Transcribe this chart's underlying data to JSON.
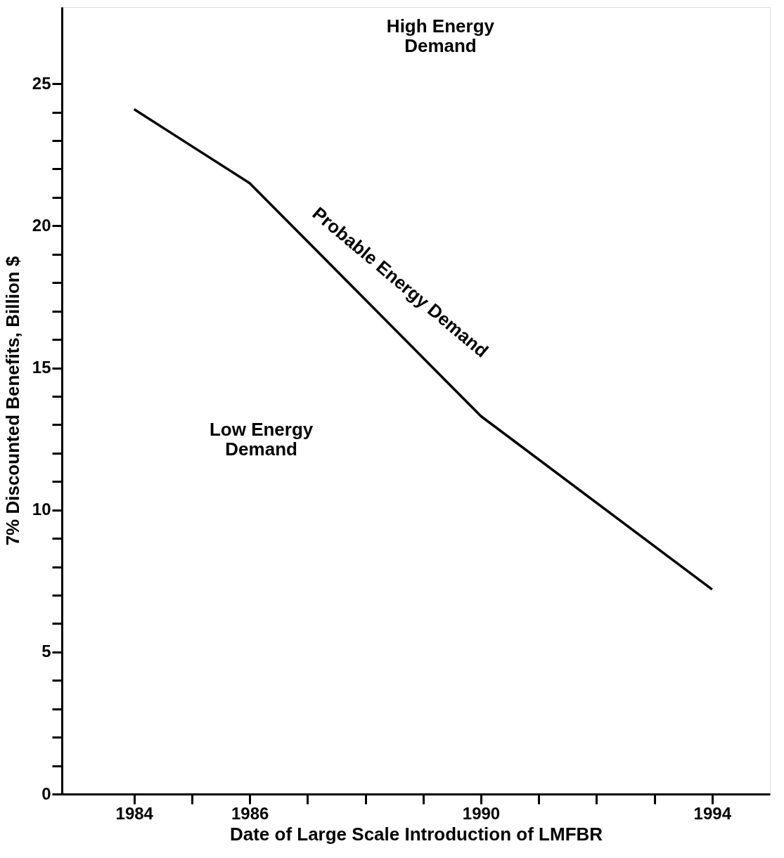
{
  "chart_data": {
    "type": "line",
    "xlabel": "Date of Large Scale Introduction of LMFBR",
    "ylabel": "7% Discounted Benefits, Billion $",
    "x": [
      1984,
      1986,
      1990,
      1994
    ],
    "series": [
      {
        "color": "#000000",
        "values": [
          24.1,
          21.5,
          13.3,
          7.2
        ]
      }
    ],
    "xlim": [
      1982.75,
      1995
    ],
    "xticks": [
      {
        "value": 1984,
        "label": "1984"
      },
      {
        "value": 1985,
        "label": null
      },
      {
        "value": 1986,
        "label": "1986"
      },
      {
        "value": 1987,
        "label": null
      },
      {
        "value": 1988,
        "label": null
      },
      {
        "value": 1989,
        "label": null
      },
      {
        "value": 1990,
        "label": "1990"
      },
      {
        "value": 1991,
        "label": null
      },
      {
        "value": 1992,
        "label": null
      },
      {
        "value": 1993,
        "label": null
      },
      {
        "value": 1994,
        "label": "1994"
      }
    ],
    "ylim": [
      0,
      27.7
    ],
    "yticks": [
      0,
      {
        "value": 1,
        "label": null
      },
      {
        "value": 2,
        "label": null
      },
      {
        "value": 3,
        "label": null
      },
      {
        "value": 4,
        "label": null
      },
      5,
      {
        "value": 6,
        "label": null
      },
      {
        "value": 7,
        "label": null
      },
      {
        "value": 8,
        "label": null
      },
      {
        "value": 9,
        "label": null
      },
      10,
      {
        "value": 11,
        "label": null
      },
      {
        "value": 12,
        "label": null
      },
      {
        "value": 13,
        "label": null
      },
      {
        "value": 14,
        "label": null
      },
      15,
      {
        "value": 16,
        "label": null
      },
      {
        "value": 17,
        "label": null
      },
      {
        "value": 18,
        "label": null
      },
      {
        "value": 19,
        "label": null
      },
      20,
      {
        "value": 21,
        "label": null
      },
      {
        "value": 22,
        "label": null
      },
      {
        "value": 23,
        "label": null
      },
      {
        "value": 24,
        "label": null
      },
      25
    ],
    "annotations": [
      "High Energy\nDemand",
      "Low Energy\nDemand",
      "Probable Energy Demand"
    ],
    "grid": false,
    "marker": "none",
    "line_style": "solid"
  }
}
